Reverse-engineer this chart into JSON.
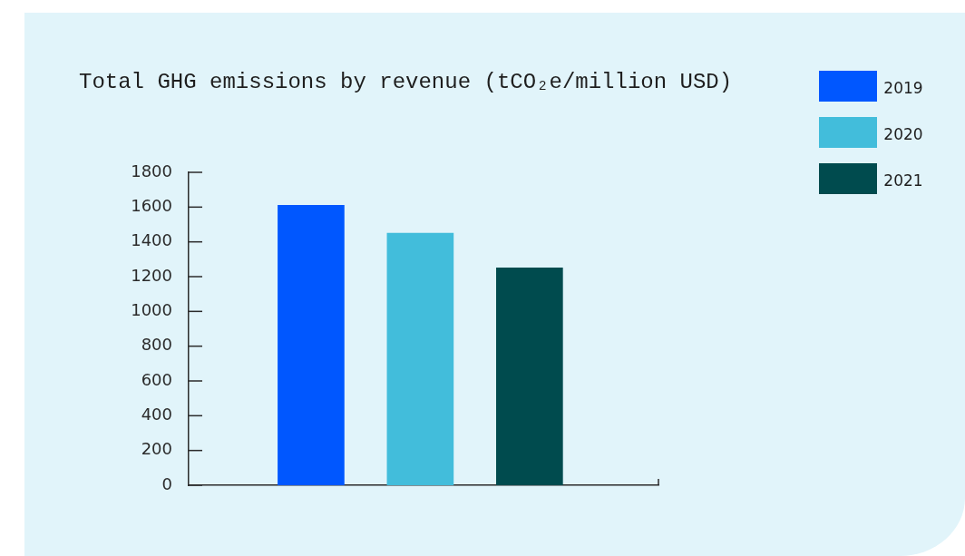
{
  "chart_data": {
    "type": "bar",
    "title": "Total GHG emissions by revenue (tCO₂e/million USD)",
    "categories": [
      null,
      null,
      null
    ],
    "series": [
      {
        "name": "2019",
        "color": "#0057ff",
        "values": [
          1610,
          null,
          null
        ]
      },
      {
        "name": "2020",
        "color": "#42bddb",
        "values": [
          null,
          1450,
          null
        ]
      },
      {
        "name": "2021",
        "color": "#004b4e",
        "values": [
          null,
          null,
          1250
        ]
      }
    ],
    "ylim": [
      0,
      1800
    ],
    "yticks": [
      0,
      200,
      400,
      600,
      800,
      1000,
      1200,
      1400,
      1600,
      1800
    ],
    "legend": "top right"
  }
}
